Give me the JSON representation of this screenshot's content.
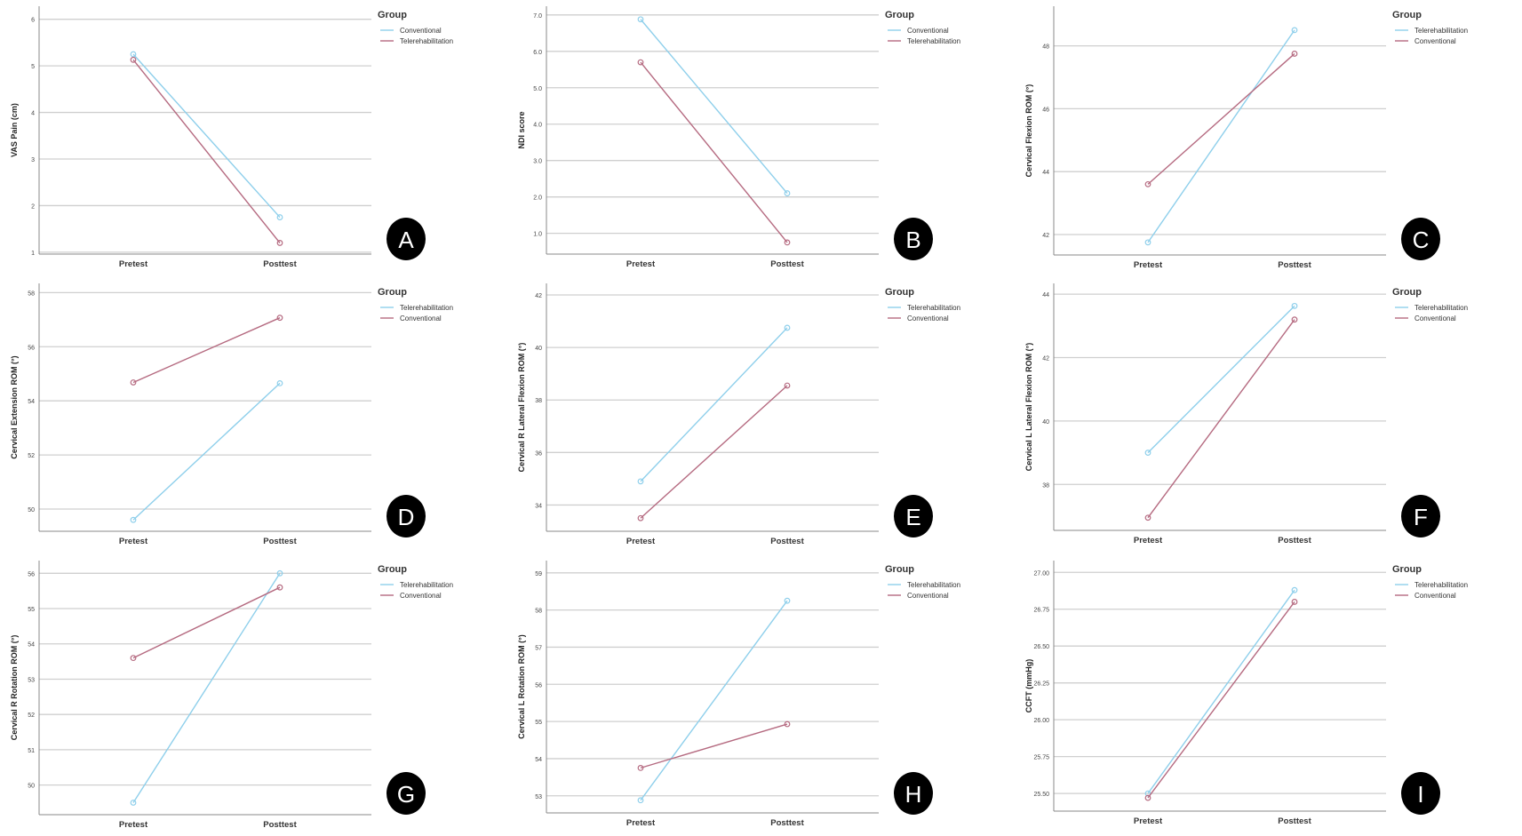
{
  "chart_data": [
    {
      "type": "line",
      "panel_label": "A",
      "ylabel": "VAS Pain (cm)",
      "categories": [
        "Pretest",
        "Posttest"
      ],
      "ylim": [
        0.96,
        6.28
      ],
      "yticks": [
        "1",
        "2",
        "3",
        "4",
        "5",
        "6"
      ],
      "grid": true,
      "legend_title": "Group",
      "legend_position": "right",
      "series": [
        {
          "name": "Conventional",
          "color": "#8ecfeb",
          "values": [
            5.25,
            1.75
          ]
        },
        {
          "name": "Telerehabilitation",
          "color": "#b56a80",
          "values": [
            5.13,
            1.2
          ]
        }
      ]
    },
    {
      "type": "line",
      "panel_label": "B",
      "ylabel": "NDI score",
      "categories": [
        "Pretest",
        "Posttest"
      ],
      "ylim": [
        0.43,
        7.24
      ],
      "yticks": [
        "1.0",
        "2.0",
        "3.0",
        "4.0",
        "5.0",
        "6.0",
        "7.0"
      ],
      "grid": true,
      "legend_title": "Group",
      "legend_position": "right",
      "series": [
        {
          "name": "Conventional",
          "color": "#8ecfeb",
          "values": [
            6.88,
            2.1
          ]
        },
        {
          "name": "Telerehabilitation",
          "color": "#b56a80",
          "values": [
            5.7,
            0.75
          ]
        }
      ]
    },
    {
      "type": "line",
      "panel_label": "C",
      "ylabel": "Cervical Flexion ROM (°)",
      "categories": [
        "Pretest",
        "Posttest"
      ],
      "ylim": [
        41.35,
        49.26
      ],
      "yticks": [
        "42",
        "44",
        "46",
        "48"
      ],
      "grid": true,
      "legend_title": "Group",
      "legend_position": "right",
      "series": [
        {
          "name": "Telerehabilitation",
          "color": "#8ecfeb",
          "values": [
            41.75,
            48.5
          ]
        },
        {
          "name": "Conventional",
          "color": "#b56a80",
          "values": [
            43.6,
            47.75
          ]
        }
      ]
    },
    {
      "type": "line",
      "panel_label": "D",
      "ylabel": "Cervical Extension ROM (°)",
      "categories": [
        "Pretest",
        "Posttest"
      ],
      "ylim": [
        49.18,
        58.34
      ],
      "yticks": [
        "50",
        "52",
        "54",
        "56",
        "58"
      ],
      "grid": true,
      "legend_title": "Group",
      "legend_position": "right",
      "series": [
        {
          "name": "Telerehabilitation",
          "color": "#8ecfeb",
          "values": [
            49.6,
            54.65
          ]
        },
        {
          "name": "Conventional",
          "color": "#b56a80",
          "values": [
            54.68,
            57.07
          ]
        }
      ]
    },
    {
      "type": "line",
      "panel_label": "E",
      "ylabel": "Cervical R Lateral Flexion ROM (°)",
      "categories": [
        "Pretest",
        "Posttest"
      ],
      "ylim": [
        33.0,
        42.44
      ],
      "yticks": [
        "34",
        "36",
        "38",
        "40",
        "42"
      ],
      "grid": true,
      "legend_title": "Group",
      "legend_position": "right",
      "series": [
        {
          "name": "Telerehabilitation",
          "color": "#8ecfeb",
          "values": [
            34.9,
            40.75
          ]
        },
        {
          "name": "Conventional",
          "color": "#b56a80",
          "values": [
            33.5,
            38.55
          ]
        }
      ]
    },
    {
      "type": "line",
      "panel_label": "F",
      "ylabel": "Cervical L Lateral Flexion ROM (°)",
      "categories": [
        "Pretest",
        "Posttest"
      ],
      "ylim": [
        36.55,
        44.34
      ],
      "yticks": [
        "38",
        "40",
        "42",
        "44"
      ],
      "grid": true,
      "legend_title": "Group",
      "legend_position": "right",
      "series": [
        {
          "name": "Telerehabilitation",
          "color": "#8ecfeb",
          "values": [
            39.0,
            43.63
          ]
        },
        {
          "name": "Conventional",
          "color": "#b56a80",
          "values": [
            36.95,
            43.2
          ]
        }
      ]
    },
    {
      "type": "line",
      "panel_label": "G",
      "ylabel": "Cervical R Rotation ROM (°)",
      "categories": [
        "Pretest",
        "Posttest"
      ],
      "ylim": [
        49.16,
        56.36
      ],
      "yticks": [
        "50",
        "51",
        "52",
        "53",
        "54",
        "55",
        "56"
      ],
      "grid": true,
      "legend_title": "Group",
      "legend_position": "right",
      "series": [
        {
          "name": "Telerehabilitation",
          "color": "#8ecfeb",
          "values": [
            49.5,
            56.0
          ]
        },
        {
          "name": "Conventional",
          "color": "#b56a80",
          "values": [
            53.6,
            55.6
          ]
        }
      ]
    },
    {
      "type": "line",
      "panel_label": "H",
      "ylabel": "Cervical L Rotation ROM (°)",
      "categories": [
        "Pretest",
        "Posttest"
      ],
      "ylim": [
        52.54,
        59.33
      ],
      "yticks": [
        "53",
        "54",
        "55",
        "56",
        "57",
        "58",
        "59"
      ],
      "grid": true,
      "legend_title": "Group",
      "legend_position": "right",
      "series": [
        {
          "name": "Telerehabilitation",
          "color": "#8ecfeb",
          "values": [
            52.88,
            58.25
          ]
        },
        {
          "name": "Conventional",
          "color": "#b56a80",
          "values": [
            53.75,
            54.93
          ]
        }
      ]
    },
    {
      "type": "line",
      "panel_label": "I",
      "ylabel": "CCFT (mmHg)",
      "categories": [
        "Pretest",
        "Posttest"
      ],
      "ylim": [
        25.38,
        27.08
      ],
      "yticks": [
        "25.50",
        "25.75",
        "26.00",
        "26.25",
        "26.50",
        "26.75",
        "27.00"
      ],
      "grid": true,
      "legend_title": "Group",
      "legend_position": "right",
      "series": [
        {
          "name": "Telerehabilitation",
          "color": "#8ecfeb",
          "values": [
            25.5,
            26.88
          ]
        },
        {
          "name": "Conventional",
          "color": "#b56a80",
          "values": [
            25.47,
            26.8
          ]
        }
      ]
    }
  ]
}
